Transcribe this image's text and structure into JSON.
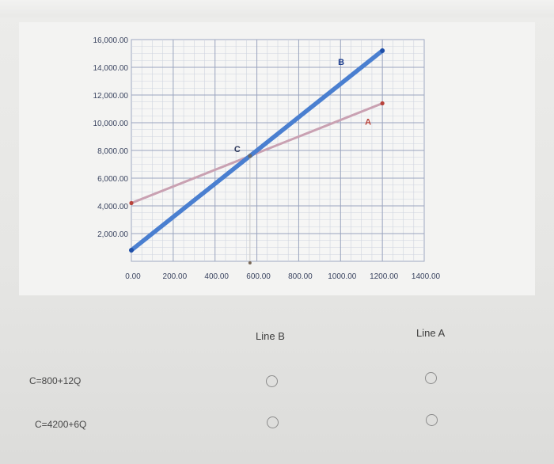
{
  "chart_data": {
    "type": "line",
    "x_ticks": [
      "0.00",
      "200.00",
      "400.00",
      "600.00",
      "800.00",
      "1000.00",
      "1200.00",
      "1400.00"
    ],
    "y_ticks": [
      "2,000.00",
      "4,000.00",
      "6,000.00",
      "8,000.00",
      "10,000.00",
      "12,000.00",
      "14,000.00",
      "16,000.00"
    ],
    "xlim": [
      0,
      1400
    ],
    "ylim": [
      0,
      16000
    ],
    "grid": true,
    "series": [
      {
        "name": "A",
        "color": "#c9a1b2",
        "point_color": "#b8423a",
        "x": [
          0,
          1200
        ],
        "y": [
          4200,
          11400
        ]
      },
      {
        "name": "B",
        "color": "#4a7fd0",
        "point_color": "#1f4fa8",
        "x": [
          0,
          1200
        ],
        "y": [
          800,
          15200
        ]
      }
    ],
    "annotations": [
      {
        "label": "C",
        "x": 567,
        "y": 7600,
        "marker": true
      }
    ]
  },
  "question": {
    "columns": [
      "Line B",
      "Line A"
    ],
    "rows": [
      {
        "label": "C=800+12Q"
      },
      {
        "label": "C=4200+6Q"
      }
    ]
  }
}
